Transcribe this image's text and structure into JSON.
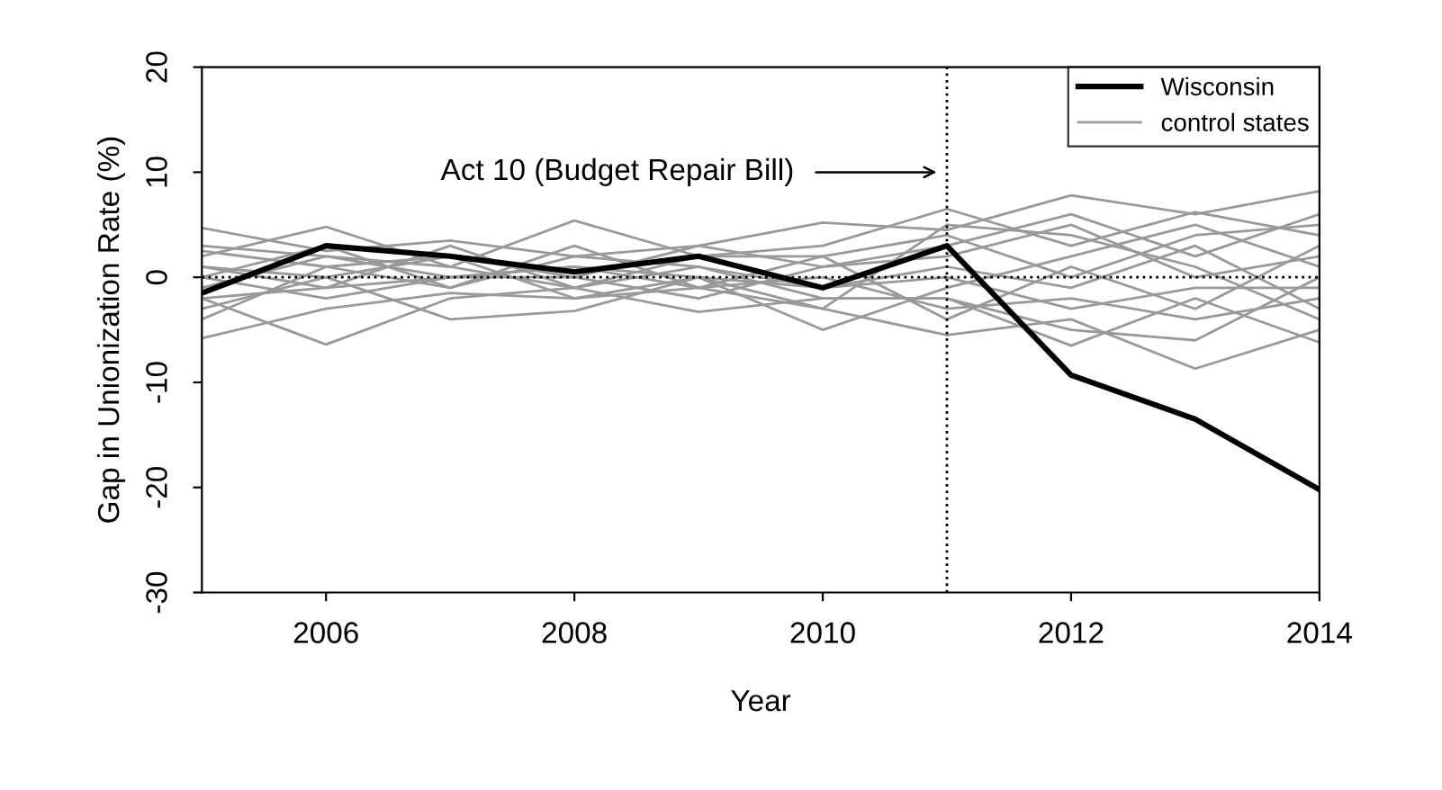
{
  "chart_data": {
    "type": "line",
    "xlabel": "Year",
    "ylabel": "Gap in Unionization Rate (%)",
    "x": [
      2005,
      2006,
      2007,
      2008,
      2009,
      2010,
      2011,
      2012,
      2013,
      2014
    ],
    "xlim": [
      2005,
      2014
    ],
    "xticks": [
      2006,
      2008,
      2010,
      2012,
      2014
    ],
    "ylim": [
      -30,
      20
    ],
    "yticks": [
      -30,
      -20,
      -10,
      0,
      10,
      20
    ],
    "grid": false,
    "legend": "top right",
    "line_style": "solid",
    "marker": "none",
    "ref_lines": [
      {
        "axis": "x",
        "value": 2011,
        "color": "#000000",
        "line_style": "dotted"
      },
      {
        "axis": "y",
        "value": 0,
        "color": "#000000",
        "line_style": "dotted"
      }
    ],
    "annotations": [
      "Act 10 (Budget Repair Bill)"
    ],
    "series": [
      {
        "name": "control states",
        "color": "#999999",
        "values": [
          4.7,
          2.5,
          3.5,
          2,
          3,
          5.2,
          4.5,
          7.8,
          6,
          8.2
        ]
      },
      {
        "color": "#999999",
        "values": [
          -5.8,
          -3,
          -1.5,
          -2,
          -1,
          -3,
          -5.5,
          -4,
          -8.7,
          -5
        ]
      },
      {
        "color": "#999999",
        "values": [
          2,
          4.8,
          1,
          5.4,
          2,
          3,
          6.5,
          3,
          6.2,
          4
        ]
      },
      {
        "color": "#999999",
        "values": [
          -2,
          -6.4,
          -2,
          -1,
          -3.3,
          -2,
          -2,
          -6.5,
          -2,
          -6.2
        ]
      },
      {
        "color": "#999999",
        "values": [
          1,
          0,
          -4,
          -3.2,
          0,
          -5,
          -1,
          2,
          5,
          1
        ]
      },
      {
        "color": "#999999",
        "values": [
          -4,
          1,
          2,
          0,
          3,
          1,
          3,
          6,
          2,
          6
        ]
      },
      {
        "color": "#999999",
        "values": [
          0,
          -2,
          0,
          1,
          -1,
          0,
          -3,
          -2,
          -4,
          -2
        ]
      },
      {
        "color": "#999999",
        "values": [
          2.5,
          1,
          -1,
          2,
          1,
          -1,
          1,
          -1,
          3,
          -3
        ]
      },
      {
        "color": "#999999",
        "values": [
          -1,
          2,
          1,
          -1,
          2,
          2,
          -4,
          1,
          -3,
          3
        ]
      },
      {
        "color": "#999999",
        "values": [
          1,
          -1,
          0,
          0,
          -2,
          1,
          2,
          5,
          0,
          2
        ]
      },
      {
        "color": "#999999",
        "values": [
          -3,
          0,
          2,
          -2,
          0,
          -1,
          0,
          -3,
          -1,
          -1
        ]
      },
      {
        "color": "#999999",
        "values": [
          0,
          3,
          -1,
          3,
          -1,
          2,
          4,
          0,
          4,
          5
        ]
      },
      {
        "color": "#999999",
        "values": [
          -2,
          -1,
          3,
          -1,
          1,
          -2,
          -2,
          -5,
          -6,
          0
        ]
      },
      {
        "color": "#999999",
        "values": [
          3,
          2,
          0,
          1,
          0,
          -3,
          5,
          4,
          1,
          -4
        ]
      },
      {
        "name": "Wisconsin",
        "color": "#000000",
        "values": [
          -1.5,
          3,
          2,
          0.5,
          2,
          -1,
          3,
          -9.3,
          -13.5,
          -20.2
        ]
      }
    ]
  }
}
